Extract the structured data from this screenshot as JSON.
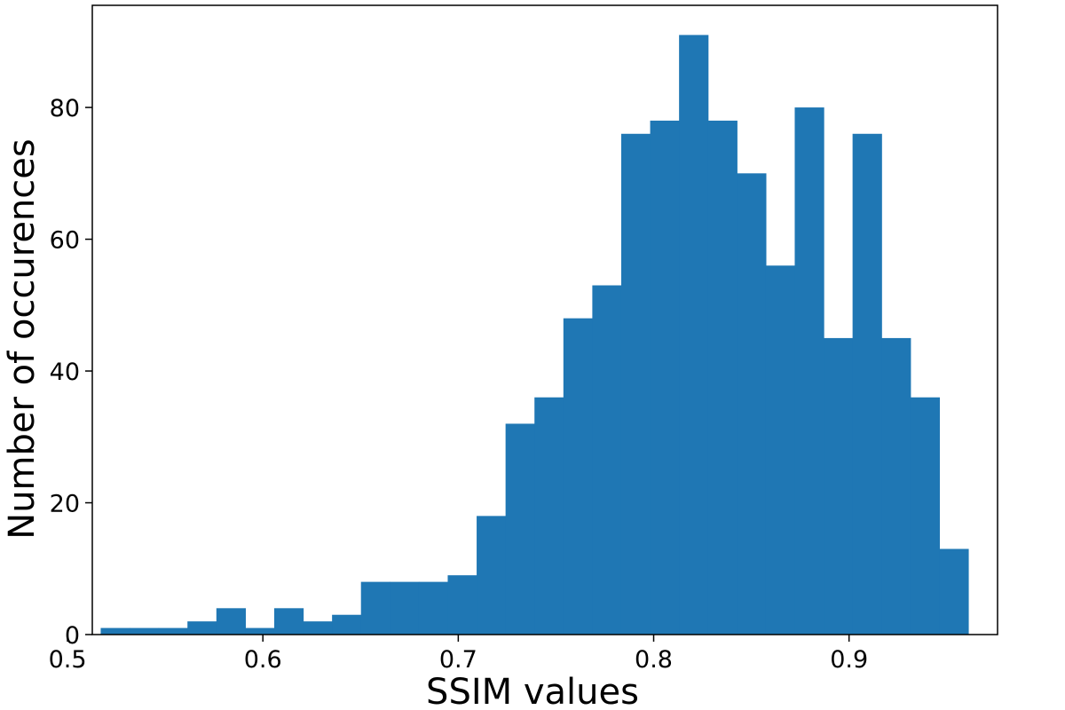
{
  "chart_data": {
    "type": "bar",
    "title": "",
    "xlabel": "SSIM values",
    "ylabel": "Number of occurences",
    "xlim": [
      0.5127,
      0.976
    ],
    "ylim": [
      0,
      95.5
    ],
    "bin_edges": [
      0.517,
      0.5318,
      0.5466,
      0.5614,
      0.5762,
      0.591,
      0.6058,
      0.6206,
      0.6354,
      0.6502,
      0.665,
      0.6798,
      0.6946,
      0.7094,
      0.7242,
      0.739,
      0.7538,
      0.7686,
      0.7834,
      0.7982,
      0.813,
      0.8278,
      0.8426,
      0.8574,
      0.8722,
      0.887,
      0.9018,
      0.9166,
      0.9314,
      0.9462,
      0.961
    ],
    "values": [
      1,
      1,
      1,
      2,
      4,
      1,
      4,
      2,
      3,
      8,
      8,
      8,
      9,
      18,
      32,
      36,
      48,
      53,
      76,
      78,
      91,
      78,
      70,
      56,
      80,
      45,
      76,
      45,
      36,
      13
    ],
    "xticks": [
      0.5,
      0.6,
      0.7,
      0.8,
      0.9
    ],
    "xtick_labels": [
      "0.5",
      "0.6",
      "0.7",
      "0.8",
      "0.9"
    ],
    "yticks": [
      0,
      20,
      40,
      60,
      80
    ],
    "ytick_labels": [
      "0",
      "20",
      "40",
      "60",
      "80"
    ],
    "bar_color": "#1f77b4",
    "grid": false,
    "legend": "none"
  }
}
